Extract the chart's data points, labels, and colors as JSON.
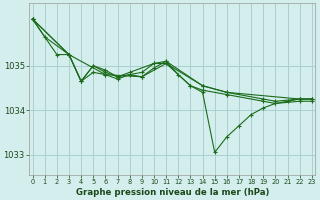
{
  "background_color": "#d4eeee",
  "grid_color": "#aad0d0",
  "line_color": "#1a6b1a",
  "title": "Graphe pression niveau de la mer (hPa)",
  "title_color": "#1a4a1a",
  "xlim": [
    -0.3,
    23.3
  ],
  "ylim": [
    1032.55,
    1036.4
  ],
  "yticks": [
    1033,
    1034,
    1035
  ],
  "xticks": [
    0,
    1,
    2,
    3,
    4,
    5,
    6,
    7,
    8,
    9,
    10,
    11,
    12,
    13,
    14,
    15,
    16,
    17,
    18,
    19,
    20,
    21,
    22,
    23
  ],
  "line1_x": [
    0,
    1,
    3,
    4,
    5,
    6,
    7,
    9,
    10,
    11,
    14,
    16,
    19,
    20,
    22,
    23
  ],
  "line1_y": [
    1036.05,
    1035.65,
    1035.25,
    1034.65,
    1035.0,
    1034.85,
    1034.75,
    1034.85,
    1035.05,
    1035.05,
    1034.55,
    1034.4,
    1034.25,
    1034.2,
    1034.25,
    1034.25
  ],
  "line2_x": [
    0,
    2,
    3,
    4,
    5,
    6,
    7,
    8,
    10,
    11,
    14,
    16,
    22,
    23
  ],
  "line2_y": [
    1036.05,
    1035.25,
    1035.25,
    1034.65,
    1035.0,
    1034.9,
    1034.75,
    1034.85,
    1035.05,
    1035.1,
    1034.55,
    1034.4,
    1034.25,
    1034.25
  ],
  "line3_x": [
    0,
    3,
    4,
    5,
    6,
    7,
    8,
    9,
    10,
    11,
    12,
    13,
    14,
    15,
    16,
    17,
    18,
    19,
    20,
    21,
    22,
    23
  ],
  "line3_y": [
    1036.05,
    1035.25,
    1034.65,
    1034.85,
    1034.8,
    1034.7,
    1034.8,
    1034.75,
    1034.95,
    1035.1,
    1034.8,
    1034.55,
    1034.4,
    1033.05,
    1033.4,
    1033.65,
    1033.9,
    1034.05,
    1034.15,
    1034.2,
    1034.25,
    1034.25
  ],
  "line4_x": [
    0,
    3,
    6,
    9,
    11,
    13,
    14,
    16,
    19,
    20,
    22,
    23
  ],
  "line4_y": [
    1036.05,
    1035.25,
    1034.8,
    1034.75,
    1035.05,
    1034.55,
    1034.45,
    1034.35,
    1034.2,
    1034.15,
    1034.2,
    1034.2
  ]
}
